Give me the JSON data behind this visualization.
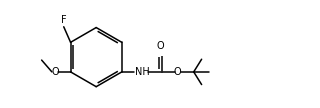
{
  "background": "#ffffff",
  "line_color": "#000000",
  "line_width": 1.1,
  "font_size": 7.0,
  "fig_width": 3.2,
  "fig_height": 1.08,
  "dpi": 100,
  "xlim": [
    0.0,
    9.8
  ],
  "ylim": [
    0.5,
    3.9
  ]
}
